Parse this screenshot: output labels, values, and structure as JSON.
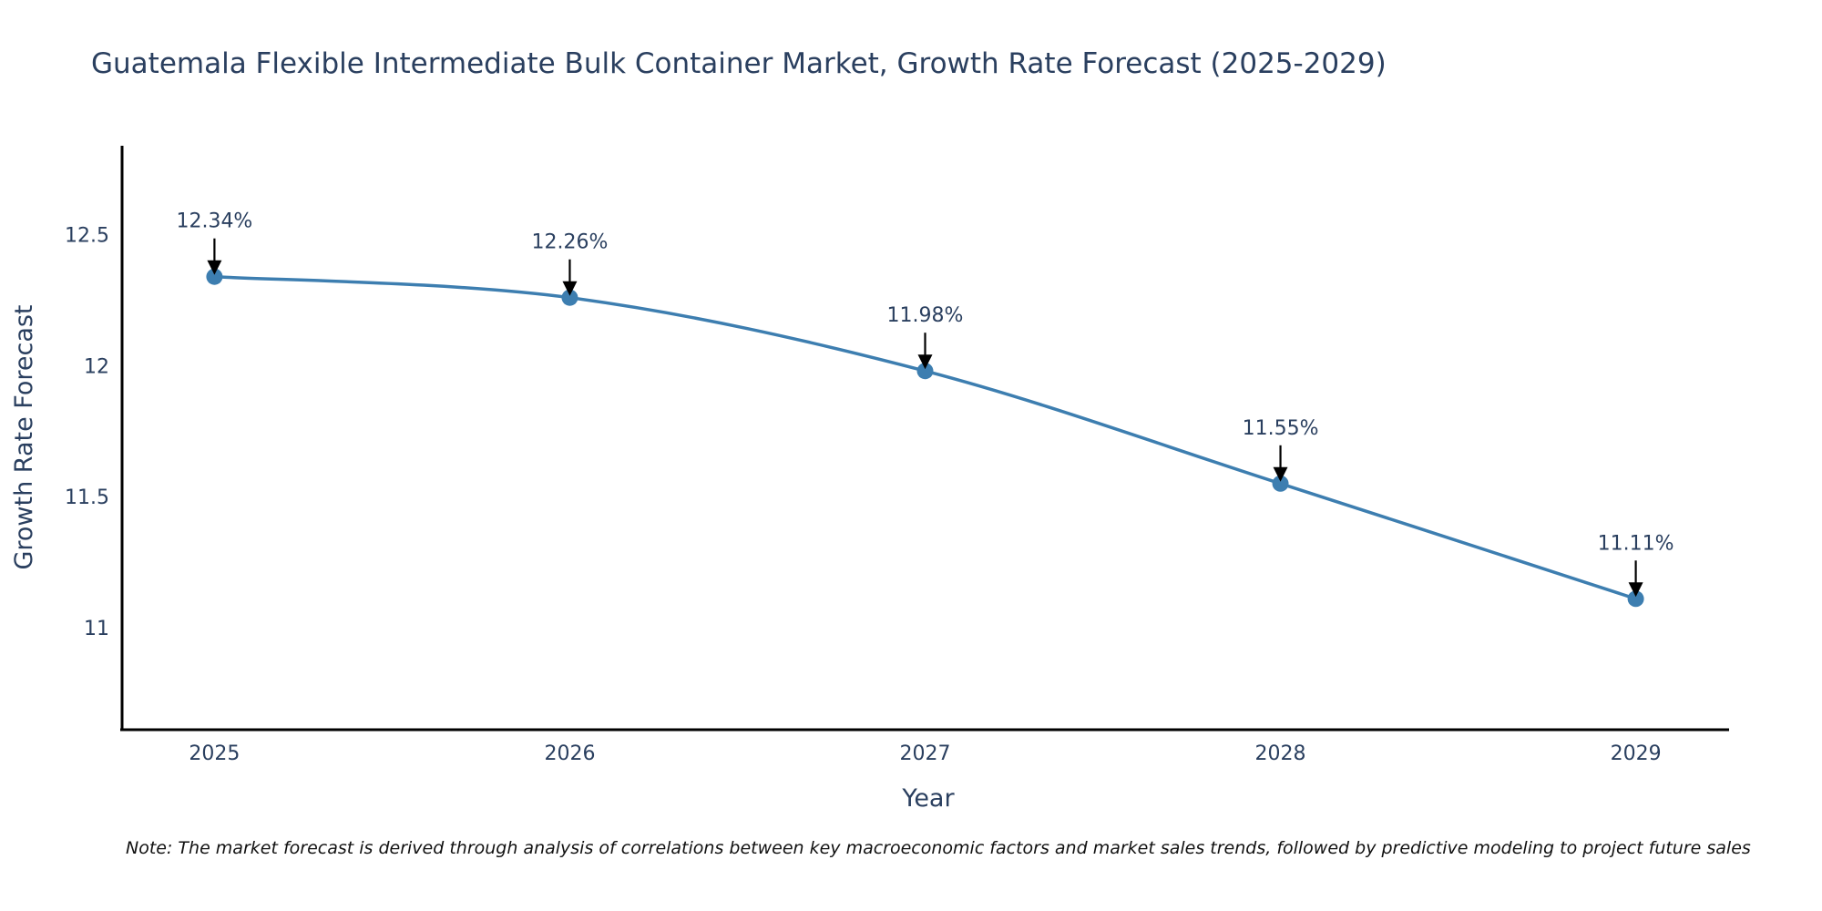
{
  "chart_data": {
    "type": "line",
    "title": "Guatemala Flexible Intermediate Bulk Container Market, Growth Rate Forecast (2025-2029)",
    "xlabel": "Year",
    "ylabel": "Growth Rate Forecast",
    "x": [
      2025,
      2026,
      2027,
      2028,
      2029
    ],
    "categories": [
      "2025",
      "2026",
      "2027",
      "2028",
      "2029"
    ],
    "series": [
      {
        "name": "Growth Rate Forecast",
        "values": [
          12.34,
          12.26,
          11.98,
          11.55,
          11.11
        ],
        "color": "#3d7eb0"
      }
    ],
    "data_labels": [
      "12.34%",
      "12.26%",
      "11.98%",
      "11.55%",
      "11.11%"
    ],
    "yticks": [
      11,
      11.5,
      12,
      12.5
    ],
    "ytick_labels": [
      "11",
      "11.5",
      "12",
      "12.5"
    ],
    "xlim": [
      2024.74,
      2029.26
    ],
    "ylim": [
      10.61,
      12.84
    ],
    "grid": false,
    "legend": "none",
    "line_shape": "spline",
    "annotation_arrows": true
  },
  "note": "Note: The market forecast is derived through analysis of correlations between key macroeconomic factors and market sales trends, followed by predictive modeling to project future sales"
}
